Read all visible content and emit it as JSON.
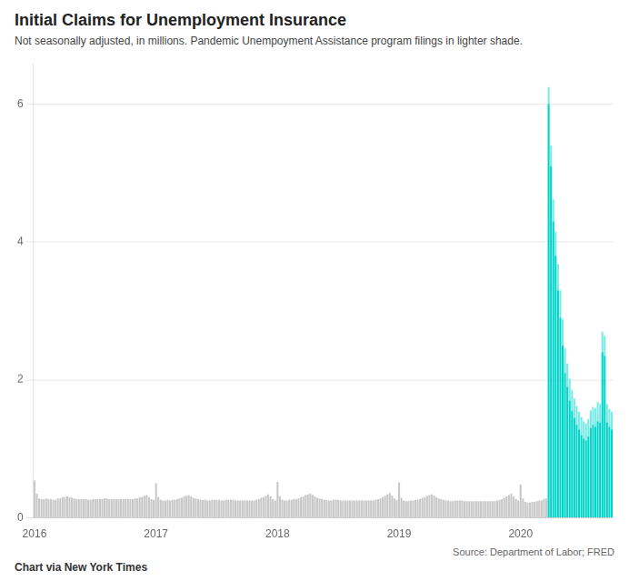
{
  "chart_data": {
    "type": "bar",
    "title": "Initial Claims for Unemployment Insurance",
    "subtitle": "Not seasonally adjusted, in millions. Pandemic Unempoyment Assistance program filings in lighter shade.",
    "annotations": [
      "Source: Department of Labor; FRED",
      "Chart via New York Times"
    ],
    "stacked": true,
    "grid": true,
    "ylim": [
      0,
      6.6
    ],
    "yticks": [
      0,
      2,
      4,
      6
    ],
    "categories": [
      "2016",
      null,
      null,
      null,
      null,
      null,
      null,
      null,
      null,
      null,
      null,
      null,
      null,
      null,
      null,
      null,
      null,
      null,
      null,
      null,
      null,
      null,
      null,
      null,
      null,
      null,
      null,
      null,
      null,
      null,
      null,
      null,
      null,
      null,
      null,
      null,
      null,
      null,
      null,
      null,
      null,
      null,
      null,
      null,
      null,
      null,
      null,
      null,
      null,
      null,
      null,
      null,
      "2017",
      null,
      null,
      null,
      null,
      null,
      null,
      null,
      null,
      null,
      null,
      null,
      null,
      null,
      null,
      null,
      null,
      null,
      null,
      null,
      null,
      null,
      null,
      null,
      null,
      null,
      null,
      null,
      null,
      null,
      null,
      null,
      null,
      null,
      null,
      null,
      null,
      null,
      null,
      null,
      null,
      null,
      null,
      null,
      null,
      null,
      null,
      null,
      null,
      null,
      null,
      null,
      "2018",
      null,
      null,
      null,
      null,
      null,
      null,
      null,
      null,
      null,
      null,
      null,
      null,
      null,
      null,
      null,
      null,
      null,
      null,
      null,
      null,
      null,
      null,
      null,
      null,
      null,
      null,
      null,
      null,
      null,
      null,
      null,
      null,
      null,
      null,
      null,
      null,
      null,
      null,
      null,
      null,
      null,
      null,
      null,
      null,
      null,
      null,
      null,
      null,
      null,
      null,
      null,
      "2019",
      null,
      null,
      null,
      null,
      null,
      null,
      null,
      null,
      null,
      null,
      null,
      null,
      null,
      null,
      null,
      null,
      null,
      null,
      null,
      null,
      null,
      null,
      null,
      null,
      null,
      null,
      null,
      null,
      null,
      null,
      null,
      null,
      null,
      null,
      null,
      null,
      null,
      null,
      null,
      null,
      null,
      null,
      null,
      null,
      null,
      null,
      null,
      null,
      null,
      null,
      null,
      "2020",
      null,
      null,
      null,
      null,
      null,
      null,
      null,
      null,
      null,
      null,
      null,
      null,
      null,
      null,
      null,
      null,
      null,
      null,
      null,
      null,
      null,
      null,
      null,
      null,
      null,
      null,
      null,
      null,
      null,
      null,
      null,
      null,
      null,
      null,
      null,
      null,
      null,
      null,
      null
    ],
    "series": [
      {
        "color": "#c8c8c8",
        "values": [
          0.54,
          0.35,
          0.28,
          0.27,
          0.27,
          0.28,
          0.27,
          0.27,
          0.26,
          0.26,
          0.28,
          0.28,
          0.3,
          0.3,
          0.31,
          0.3,
          0.29,
          0.28,
          0.27,
          0.27,
          0.27,
          0.27,
          0.27,
          0.26,
          0.26,
          0.27,
          0.27,
          0.27,
          0.27,
          0.27,
          0.28,
          0.28,
          0.27,
          0.27,
          0.27,
          0.27,
          0.27,
          0.27,
          0.27,
          0.27,
          0.27,
          0.27,
          0.27,
          0.28,
          0.28,
          0.3,
          0.3,
          0.32,
          0.33,
          0.3,
          0.27,
          0.26,
          0.5,
          0.3,
          0.26,
          0.25,
          0.25,
          0.26,
          0.25,
          0.26,
          0.26,
          0.27,
          0.28,
          0.29,
          0.31,
          0.32,
          0.33,
          0.31,
          0.29,
          0.28,
          0.27,
          0.26,
          0.26,
          0.26,
          0.25,
          0.25,
          0.26,
          0.26,
          0.26,
          0.26,
          0.25,
          0.25,
          0.26,
          0.26,
          0.26,
          0.26,
          0.25,
          0.25,
          0.25,
          0.25,
          0.25,
          0.25,
          0.25,
          0.25,
          0.25,
          0.26,
          0.27,
          0.29,
          0.3,
          0.32,
          0.34,
          0.31,
          0.27,
          0.25,
          0.52,
          0.31,
          0.26,
          0.25,
          0.25,
          0.26,
          0.26,
          0.27,
          0.27,
          0.28,
          0.3,
          0.31,
          0.33,
          0.34,
          0.35,
          0.33,
          0.31,
          0.29,
          0.28,
          0.27,
          0.26,
          0.26,
          0.25,
          0.25,
          0.26,
          0.26,
          0.26,
          0.25,
          0.25,
          0.25,
          0.25,
          0.25,
          0.25,
          0.25,
          0.25,
          0.25,
          0.25,
          0.25,
          0.25,
          0.25,
          0.25,
          0.25,
          0.26,
          0.27,
          0.28,
          0.3,
          0.32,
          0.34,
          0.36,
          0.32,
          0.28,
          0.26,
          0.51,
          0.29,
          0.25,
          0.24,
          0.24,
          0.25,
          0.25,
          0.26,
          0.26,
          0.27,
          0.29,
          0.3,
          0.32,
          0.33,
          0.34,
          0.32,
          0.3,
          0.28,
          0.27,
          0.26,
          0.25,
          0.25,
          0.24,
          0.24,
          0.25,
          0.25,
          0.25,
          0.25,
          0.24,
          0.24,
          0.24,
          0.24,
          0.24,
          0.24,
          0.24,
          0.24,
          0.24,
          0.24,
          0.24,
          0.24,
          0.24,
          0.24,
          0.25,
          0.26,
          0.27,
          0.29,
          0.31,
          0.33,
          0.35,
          0.31,
          0.27,
          0.25,
          0.48,
          0.28,
          0.23,
          0.22,
          0.22,
          0.23,
          0.23,
          0.24,
          0.25,
          0.25,
          0.27,
          0.28,
          null,
          null,
          null,
          null,
          null,
          null,
          null,
          null,
          null,
          null,
          null,
          null,
          null,
          null,
          null,
          null,
          null,
          null,
          null,
          null,
          null,
          null,
          null,
          null,
          null,
          null,
          null,
          null
        ]
      },
      {
        "color": "#00d4c8",
        "values": [
          null,
          null,
          null,
          null,
          null,
          null,
          null,
          null,
          null,
          null,
          null,
          null,
          null,
          null,
          null,
          null,
          null,
          null,
          null,
          null,
          null,
          null,
          null,
          null,
          null,
          null,
          null,
          null,
          null,
          null,
          null,
          null,
          null,
          null,
          null,
          null,
          null,
          null,
          null,
          null,
          null,
          null,
          null,
          null,
          null,
          null,
          null,
          null,
          null,
          null,
          null,
          null,
          null,
          null,
          null,
          null,
          null,
          null,
          null,
          null,
          null,
          null,
          null,
          null,
          null,
          null,
          null,
          null,
          null,
          null,
          null,
          null,
          null,
          null,
          null,
          null,
          null,
          null,
          null,
          null,
          null,
          null,
          null,
          null,
          null,
          null,
          null,
          null,
          null,
          null,
          null,
          null,
          null,
          null,
          null,
          null,
          null,
          null,
          null,
          null,
          null,
          null,
          null,
          null,
          null,
          null,
          null,
          null,
          null,
          null,
          null,
          null,
          null,
          null,
          null,
          null,
          null,
          null,
          null,
          null,
          null,
          null,
          null,
          null,
          null,
          null,
          null,
          null,
          null,
          null,
          null,
          null,
          null,
          null,
          null,
          null,
          null,
          null,
          null,
          null,
          null,
          null,
          null,
          null,
          null,
          null,
          null,
          null,
          null,
          null,
          null,
          null,
          null,
          null,
          null,
          null,
          null,
          null,
          null,
          null,
          null,
          null,
          null,
          null,
          null,
          null,
          null,
          null,
          null,
          null,
          null,
          null,
          null,
          null,
          null,
          null,
          null,
          null,
          null,
          null,
          null,
          null,
          null,
          null,
          null,
          null,
          null,
          null,
          null,
          null,
          null,
          null,
          null,
          null,
          null,
          null,
          null,
          null,
          null,
          null,
          null,
          null,
          null,
          null,
          null,
          null,
          null,
          null,
          null,
          null,
          null,
          null,
          null,
          null,
          null,
          null,
          null,
          null,
          null,
          null,
          6.0,
          5.1,
          4.3,
          3.8,
          3.3,
          2.9,
          2.5,
          2.1,
          1.9,
          1.7,
          1.55,
          1.45,
          1.35,
          1.28,
          1.2,
          1.15,
          1.12,
          1.18,
          1.3,
          1.35,
          1.32,
          1.4,
          1.38,
          2.4,
          2.35,
          1.38,
          1.32,
          1.28
        ]
      },
      {
        "color": "#7aeae4",
        "values": [
          null,
          null,
          null,
          null,
          null,
          null,
          null,
          null,
          null,
          null,
          null,
          null,
          null,
          null,
          null,
          null,
          null,
          null,
          null,
          null,
          null,
          null,
          null,
          null,
          null,
          null,
          null,
          null,
          null,
          null,
          null,
          null,
          null,
          null,
          null,
          null,
          null,
          null,
          null,
          null,
          null,
          null,
          null,
          null,
          null,
          null,
          null,
          null,
          null,
          null,
          null,
          null,
          null,
          null,
          null,
          null,
          null,
          null,
          null,
          null,
          null,
          null,
          null,
          null,
          null,
          null,
          null,
          null,
          null,
          null,
          null,
          null,
          null,
          null,
          null,
          null,
          null,
          null,
          null,
          null,
          null,
          null,
          null,
          null,
          null,
          null,
          null,
          null,
          null,
          null,
          null,
          null,
          null,
          null,
          null,
          null,
          null,
          null,
          null,
          null,
          null,
          null,
          null,
          null,
          null,
          null,
          null,
          null,
          null,
          null,
          null,
          null,
          null,
          null,
          null,
          null,
          null,
          null,
          null,
          null,
          null,
          null,
          null,
          null,
          null,
          null,
          null,
          null,
          null,
          null,
          null,
          null,
          null,
          null,
          null,
          null,
          null,
          null,
          null,
          null,
          null,
          null,
          null,
          null,
          null,
          null,
          null,
          null,
          null,
          null,
          null,
          null,
          null,
          null,
          null,
          null,
          null,
          null,
          null,
          null,
          null,
          null,
          null,
          null,
          null,
          null,
          null,
          null,
          null,
          null,
          null,
          null,
          null,
          null,
          null,
          null,
          null,
          null,
          null,
          null,
          null,
          null,
          null,
          null,
          null,
          null,
          null,
          null,
          null,
          null,
          null,
          null,
          null,
          null,
          null,
          null,
          null,
          null,
          null,
          null,
          null,
          null,
          null,
          null,
          null,
          null,
          null,
          null,
          null,
          null,
          null,
          null,
          null,
          null,
          null,
          null,
          null,
          null,
          null,
          null,
          0.25,
          0.3,
          0.32,
          0.35,
          0.38,
          0.4,
          0.38,
          0.36,
          0.34,
          0.32,
          0.3,
          0.28,
          0.27,
          0.26,
          0.26,
          0.25,
          0.25,
          0.25,
          0.26,
          0.26,
          0.27,
          0.28,
          0.27,
          0.3,
          0.29,
          0.27,
          0.26,
          0.26
        ]
      }
    ]
  }
}
